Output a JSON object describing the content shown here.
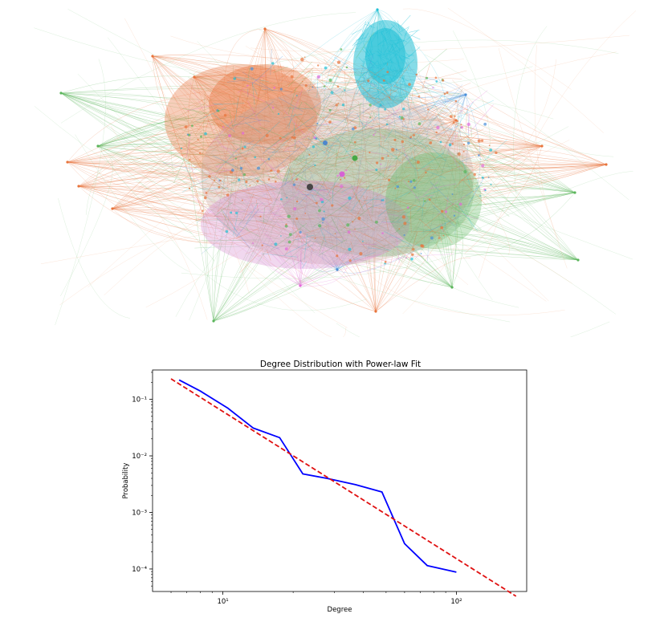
{
  "network": {
    "description_colors": [
      "#e8743b",
      "#5ab55a",
      "#22c0d6",
      "#e36bd8",
      "#4a90d9",
      "#555555"
    ],
    "hub_colors": {
      "orange": "#ea6a2a",
      "green": "#3aa53a",
      "cyan": "#1fc3d9",
      "magenta": "#d858d8",
      "blue": "#3f7fd0",
      "dark": "#3a3a3a"
    }
  },
  "chart_data": {
    "type": "line",
    "title": "Degree Distribution with Power-law Fit",
    "xlabel": "Degree",
    "ylabel": "Probability",
    "xscale": "log",
    "yscale": "log",
    "xlim": [
      5,
      200
    ],
    "ylim": [
      4e-05,
      0.33
    ],
    "x_ticks": [
      {
        "value": 10,
        "label": "10¹"
      },
      {
        "value": 100,
        "label": "10²"
      }
    ],
    "y_ticks": [
      {
        "value": 0.0001,
        "label": "10⁻⁴"
      },
      {
        "value": 0.001,
        "label": "10⁻³"
      },
      {
        "value": 0.01,
        "label": "10⁻²"
      },
      {
        "value": 0.1,
        "label": "10⁻¹"
      }
    ],
    "grid": false,
    "series": [
      {
        "style": "solid",
        "color": "#0000ff",
        "x": [
          6.5,
          8,
          10.5,
          13.5,
          17.5,
          22,
          28,
          37,
          48,
          60,
          75,
          100
        ],
        "y": [
          0.22,
          0.14,
          0.07,
          0.031,
          0.021,
          0.0048,
          0.004,
          0.0031,
          0.0023,
          0.00028,
          0.000115,
          8.8e-05
        ]
      },
      {
        "style": "dashed",
        "color": "#e01010",
        "x": [
          6,
          180
        ],
        "y": [
          0.23,
          3.3e-05
        ]
      }
    ]
  }
}
